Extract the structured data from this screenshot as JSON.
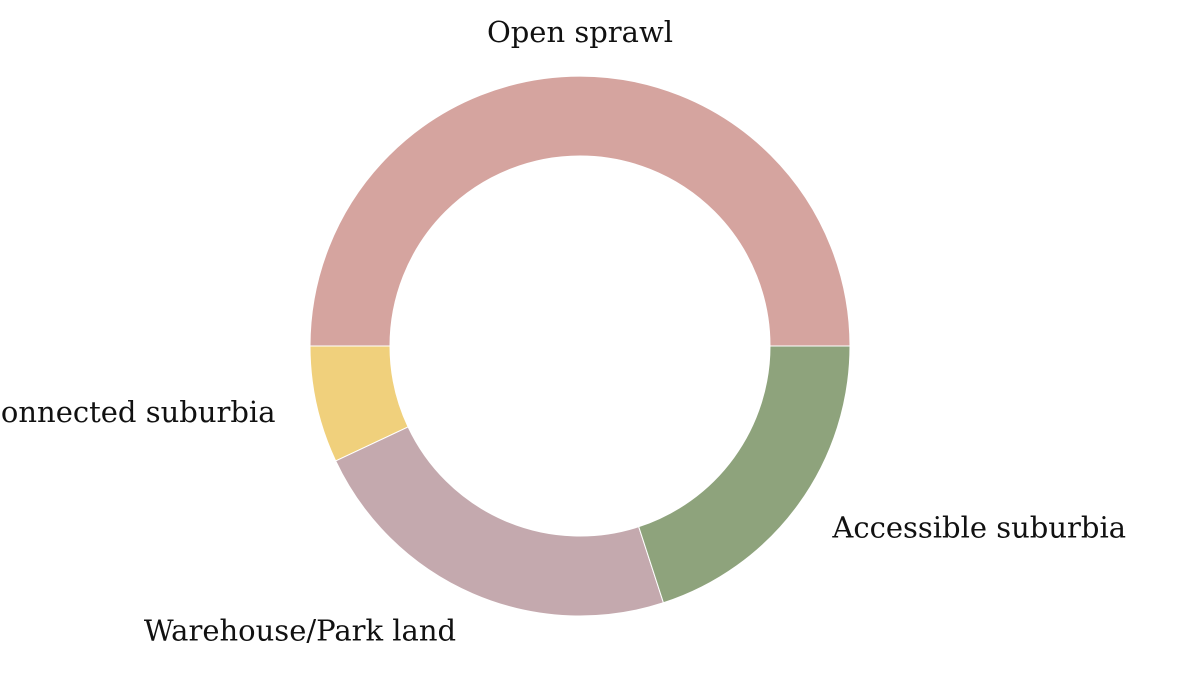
{
  "chart_data": {
    "type": "pie",
    "donut": true,
    "title": "",
    "categories": [
      "Open sprawl",
      "Disconnected suburbia",
      "Warehouse/Park land",
      "Accessible suburbia"
    ],
    "values": [
      50.0,
      7.0,
      23.0,
      20.0
    ],
    "colors": [
      "#d5a49f",
      "#f0d07c",
      "#c4a9ae",
      "#8ea37c"
    ],
    "legend": "none"
  }
}
